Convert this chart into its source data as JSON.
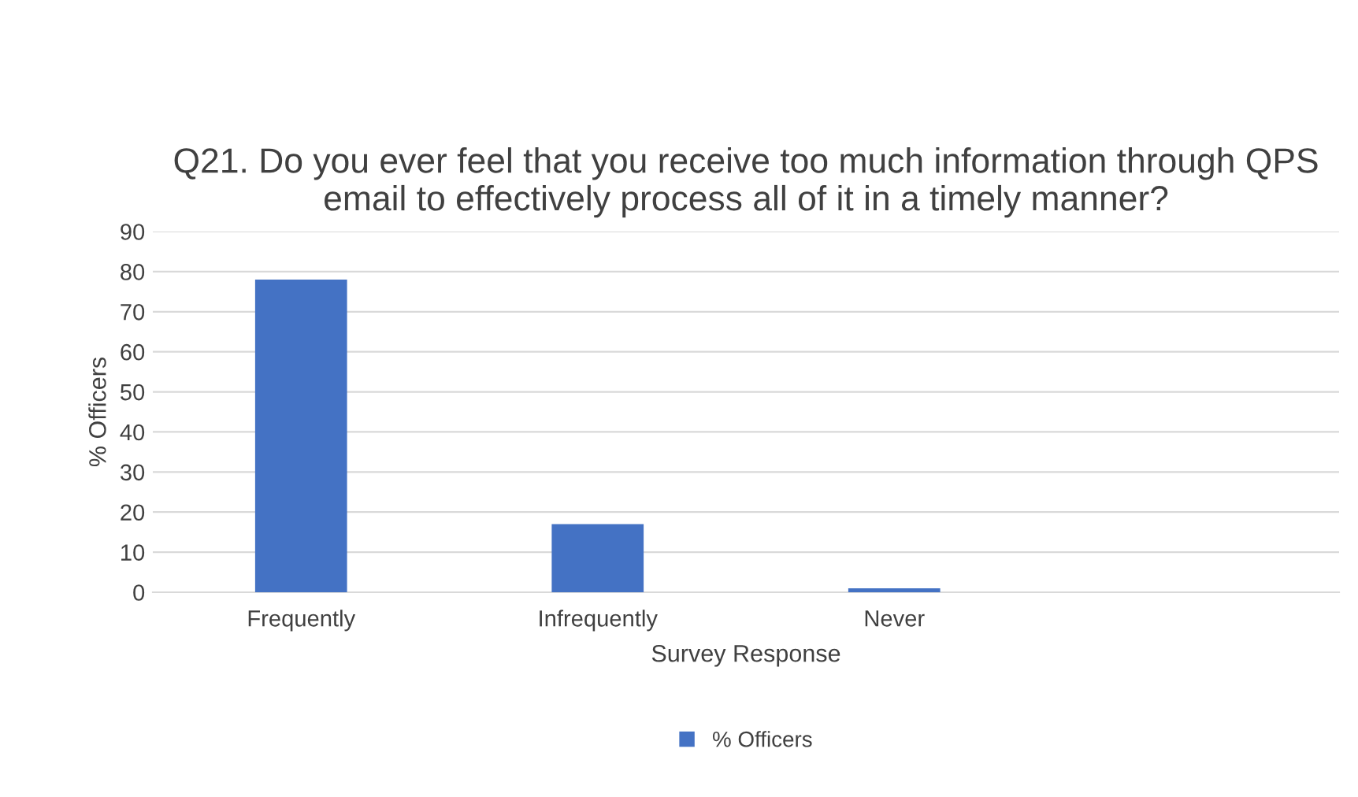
{
  "chart_data": {
    "type": "bar",
    "title": "Q21. Do you ever feel that you receive too much information through QPS email to effectively process all of it in a timely manner?",
    "xlabel": "Survey Response",
    "ylabel": "% Officers",
    "categories": [
      "Frequently",
      "Infrequently",
      "Never",
      null
    ],
    "series": [
      {
        "name": "% Officers",
        "color": "#4472c4",
        "values": [
          78,
          17,
          1,
          null
        ]
      }
    ],
    "ylim": [
      0,
      90
    ],
    "yticks": [
      0,
      10,
      20,
      30,
      40,
      50,
      60,
      70,
      80,
      90
    ],
    "grid": "y",
    "legend": "bottom"
  }
}
